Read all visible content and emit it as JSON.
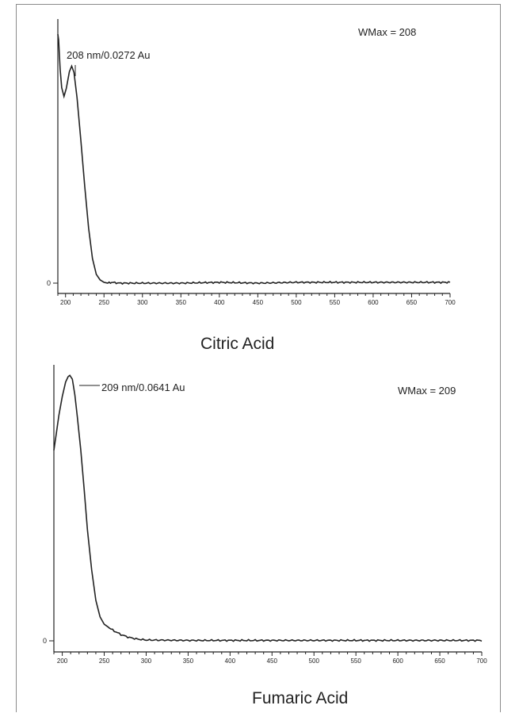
{
  "chart_data": [
    {
      "type": "line",
      "title": "Citric Acid",
      "xlim": [
        190,
        700
      ],
      "ylim": [
        0,
        0.0325
      ],
      "xticks": [
        200,
        250,
        300,
        350,
        400,
        450,
        500,
        550,
        600,
        650,
        700
      ],
      "yticks": [
        0
      ],
      "xticklabels": [
        "200",
        "250",
        "300",
        "350",
        "400",
        "450",
        "500",
        "550",
        "600",
        "650",
        "700"
      ],
      "yticklabels": [
        "0"
      ],
      "annotation": {
        "text": "208 nm/0.0272 Au",
        "x": 208,
        "y": 0.0272
      },
      "wmax_label": "WMax = 208",
      "series": [
        {
          "x": [
            190,
            191,
            193,
            195,
            198,
            201,
            205,
            208,
            211,
            215,
            220,
            225,
            230,
            235,
            240,
            245,
            250,
            255,
            260,
            270,
            300,
            350,
            400,
            450,
            500,
            550,
            600,
            650,
            700
          ],
          "y": [
            0.0312,
            0.0305,
            0.0268,
            0.0245,
            0.0234,
            0.0244,
            0.0265,
            0.0272,
            0.0264,
            0.0232,
            0.0178,
            0.0121,
            0.0069,
            0.0031,
            0.0011,
            0.0004,
            0.0001,
            0.0,
            0.0001,
            0.0,
            0.0,
            0.0,
            0.0001,
            0.0,
            0.0001,
            0.0001,
            0.0001,
            0.0001,
            0.0001
          ]
        }
      ]
    },
    {
      "type": "line",
      "title": "Fumaric Acid",
      "xlim": [
        190,
        700
      ],
      "ylim": [
        0,
        0.0655
      ],
      "xticks": [
        200,
        250,
        300,
        350,
        400,
        450,
        500,
        550,
        600,
        650,
        700
      ],
      "yticks": [
        0
      ],
      "xticklabels": [
        "200",
        "250",
        "300",
        "350",
        "400",
        "450",
        "500",
        "550",
        "600",
        "650",
        "700"
      ],
      "yticklabels": [
        "0"
      ],
      "annotation": {
        "text": "209 nm/0.0641 Au",
        "x": 209,
        "y": 0.0641
      },
      "wmax_label": "WMax = 209",
      "series": [
        {
          "x": [
            190,
            193,
            196,
            200,
            204,
            207,
            209,
            212,
            215,
            218,
            222,
            226,
            230,
            235,
            240,
            245,
            250,
            260,
            270,
            280,
            290,
            300,
            350,
            400,
            450,
            500,
            550,
            600,
            650,
            700
          ],
          "y": [
            0.046,
            0.0502,
            0.0545,
            0.059,
            0.0625,
            0.0638,
            0.0641,
            0.0632,
            0.0594,
            0.054,
            0.0462,
            0.0368,
            0.0268,
            0.0172,
            0.0098,
            0.0058,
            0.004,
            0.0026,
            0.0015,
            0.0008,
            0.0004,
            0.0002,
            0.0001,
            0.0001,
            0.0001,
            0.0001,
            0.0001,
            0.0001,
            0.0001,
            0.0001
          ]
        }
      ]
    }
  ]
}
